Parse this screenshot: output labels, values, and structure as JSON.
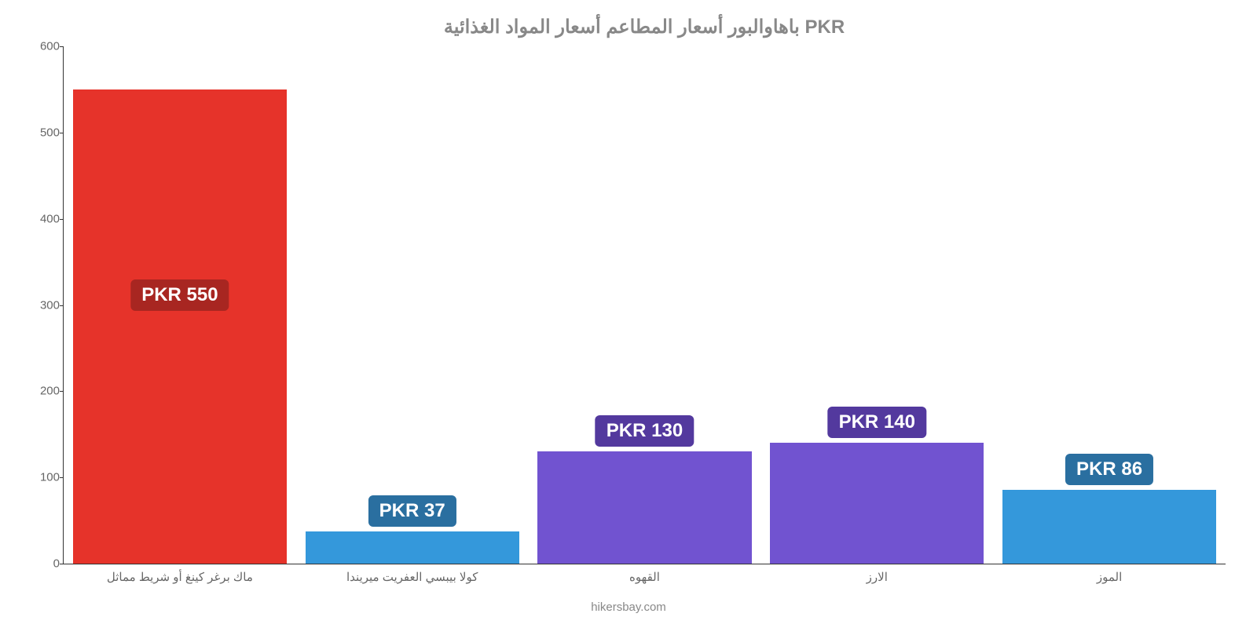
{
  "chart": {
    "type": "bar",
    "title": "باهاوالبور أسعار المطاعم أسعار المواد الغذائية PKR",
    "title_fontsize": 24,
    "title_color": "#888888",
    "attribution": "hikersbay.com",
    "attribution_fontsize": 15,
    "attribution_color": "#888888",
    "background_color": "#ffffff",
    "axis_color": "#333333",
    "tick_label_color": "#666666",
    "tick_label_fontsize": 15,
    "xlabel_fontsize": 15,
    "value_label_fontsize": 24,
    "value_label_text_color": "#ffffff",
    "ylim": [
      0,
      600
    ],
    "ytick_step": 100,
    "yticks": [
      0,
      100,
      200,
      300,
      400,
      500,
      600
    ],
    "bar_width_ratio": 0.92,
    "categories": [
      "ماك برغر كينغ أو شريط مماثل",
      "كولا بيبسي العفريت ميريندا",
      "القهوه",
      "الارز",
      "الموز"
    ],
    "values": [
      550,
      37,
      130,
      140,
      86
    ],
    "value_labels": [
      "PKR 550",
      "PKR 37",
      "PKR 130",
      "PKR 140",
      "PKR 86"
    ],
    "bar_colors": [
      "#e6332a",
      "#3498db",
      "#7153d0",
      "#7153d0",
      "#3498db"
    ],
    "label_bg_colors": [
      "#a82621",
      "#2a6fa0",
      "#53399e",
      "#53399e",
      "#2a6fa0"
    ],
    "label_offset_mode": [
      "inside",
      "above",
      "above",
      "above",
      "above"
    ]
  }
}
